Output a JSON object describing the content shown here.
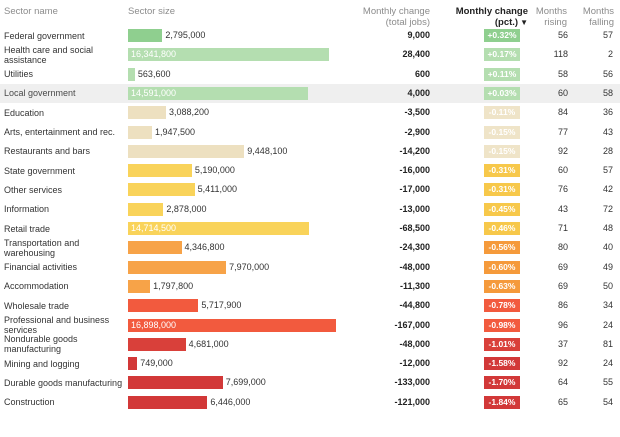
{
  "headers": {
    "sector_name": "Sector name",
    "sector_size": "Sector size",
    "monthly_change_line1": "Monthly change",
    "monthly_change_line2": "(total jobs)",
    "pct_change_line1": "Monthly change",
    "pct_change_line2": "(pct.)",
    "sort_icon": "sort-descending-icon",
    "months_rising_line1": "Months",
    "months_rising_line2": "rising",
    "months_falling_line1": "Months",
    "months_falling_line2": "falling"
  },
  "colors": {
    "green_dark": "#8fcf8f",
    "green_light": "#b4deb0",
    "beige": "#ede0c0",
    "beige_badge": "#efe4c8",
    "yellow": "#f9d35a",
    "yellow_badge": "#f7c84a",
    "orange": "#f7a348",
    "orange_badge": "#f59a3b",
    "red_orange": "#f25a3e",
    "red": "#d9403a",
    "red_dark": "#d23838",
    "highlight_row": "#efefef"
  },
  "chart_data": {
    "type": "table",
    "columns": [
      "Sector name",
      "Sector size",
      "Monthly change (total jobs)",
      "Monthly change (pct.)",
      "Months rising",
      "Months falling"
    ],
    "sort": {
      "column": "Monthly change (pct.)",
      "order": "descending"
    },
    "highlighted_row": "Local government",
    "rows": [
      {
        "name": "Federal government",
        "size": 2795000,
        "size_label": "2,795,000",
        "change": "9,000",
        "pct": "+0.32%",
        "rising": 56,
        "falling": 57,
        "color": "green_dark",
        "size_inside": false
      },
      {
        "name": "Health care and social assistance",
        "size": 16341800,
        "size_label": "16,341,800",
        "change": "28,400",
        "pct": "+0.17%",
        "rising": 118,
        "falling": 2,
        "color": "green_light",
        "size_inside": true
      },
      {
        "name": "Utilities",
        "size": 563600,
        "size_label": "563,600",
        "change": "600",
        "pct": "+0.11%",
        "rising": 58,
        "falling": 56,
        "color": "green_light",
        "size_inside": false
      },
      {
        "name": "Local government",
        "size": 14591000,
        "size_label": "14,591,000",
        "change": "4,000",
        "pct": "+0.03%",
        "rising": 60,
        "falling": 58,
        "color": "green_light",
        "size_inside": true
      },
      {
        "name": "Education",
        "size": 3088200,
        "size_label": "3,088,200",
        "change": "-3,500",
        "pct": "-0.11%",
        "rising": 84,
        "falling": 36,
        "color": "beige",
        "size_inside": false
      },
      {
        "name": "Arts, entertainment and rec.",
        "size": 1947500,
        "size_label": "1,947,500",
        "change": "-2,900",
        "pct": "-0.15%",
        "rising": 77,
        "falling": 43,
        "color": "beige",
        "size_inside": false
      },
      {
        "name": "Restaurants and bars",
        "size": 9448100,
        "size_label": "9,448,100",
        "change": "-14,200",
        "pct": "-0.15%",
        "rising": 92,
        "falling": 28,
        "color": "beige",
        "size_inside": false
      },
      {
        "name": "State government",
        "size": 5190000,
        "size_label": "5,190,000",
        "change": "-16,000",
        "pct": "-0.31%",
        "rising": 60,
        "falling": 57,
        "color": "yellow",
        "size_inside": false
      },
      {
        "name": "Other services",
        "size": 5411000,
        "size_label": "5,411,000",
        "change": "-17,000",
        "pct": "-0.31%",
        "rising": 76,
        "falling": 42,
        "color": "yellow",
        "size_inside": false
      },
      {
        "name": "Information",
        "size": 2878000,
        "size_label": "2,878,000",
        "change": "-13,000",
        "pct": "-0.45%",
        "rising": 43,
        "falling": 72,
        "color": "yellow",
        "size_inside": false
      },
      {
        "name": "Retail trade",
        "size": 14714500,
        "size_label": "14,714,500",
        "change": "-68,500",
        "pct": "-0.46%",
        "rising": 71,
        "falling": 48,
        "color": "yellow",
        "size_inside": true
      },
      {
        "name": "Transportation and warehousing",
        "size": 4346800,
        "size_label": "4,346,800",
        "change": "-24,300",
        "pct": "-0.56%",
        "rising": 80,
        "falling": 40,
        "color": "orange",
        "size_inside": false
      },
      {
        "name": "Financial activities",
        "size": 7970000,
        "size_label": "7,970,000",
        "change": "-48,000",
        "pct": "-0.60%",
        "rising": 69,
        "falling": 49,
        "color": "orange",
        "size_inside": false
      },
      {
        "name": "Accommodation",
        "size": 1797800,
        "size_label": "1,797,800",
        "change": "-11,300",
        "pct": "-0.63%",
        "rising": 69,
        "falling": 50,
        "color": "orange",
        "size_inside": false
      },
      {
        "name": "Wholesale trade",
        "size": 5717900,
        "size_label": "5,717,900",
        "change": "-44,800",
        "pct": "-0.78%",
        "rising": 86,
        "falling": 34,
        "color": "red_orange",
        "size_inside": false
      },
      {
        "name": "Professional and business services",
        "size": 16898000,
        "size_label": "16,898,000",
        "change": "-167,000",
        "pct": "-0.98%",
        "rising": 96,
        "falling": 24,
        "color": "red_orange",
        "size_inside": true
      },
      {
        "name": "Nondurable goods manufacturing",
        "size": 4681000,
        "size_label": "4,681,000",
        "change": "-48,000",
        "pct": "-1.01%",
        "rising": 37,
        "falling": 81,
        "color": "red",
        "size_inside": false
      },
      {
        "name": "Mining and logging",
        "size": 749000,
        "size_label": "749,000",
        "change": "-12,000",
        "pct": "-1.58%",
        "rising": 92,
        "falling": 24,
        "color": "red_dark",
        "size_inside": false
      },
      {
        "name": "Durable goods manufacturing",
        "size": 7699000,
        "size_label": "7,699,000",
        "change": "-133,000",
        "pct": "-1.70%",
        "rising": 64,
        "falling": 55,
        "color": "red_dark",
        "size_inside": false
      },
      {
        "name": "Construction",
        "size": 6446000,
        "size_label": "6,446,000",
        "change": "-121,000",
        "pct": "-1.84%",
        "rising": 65,
        "falling": 54,
        "color": "red_dark",
        "size_inside": false
      }
    ]
  }
}
